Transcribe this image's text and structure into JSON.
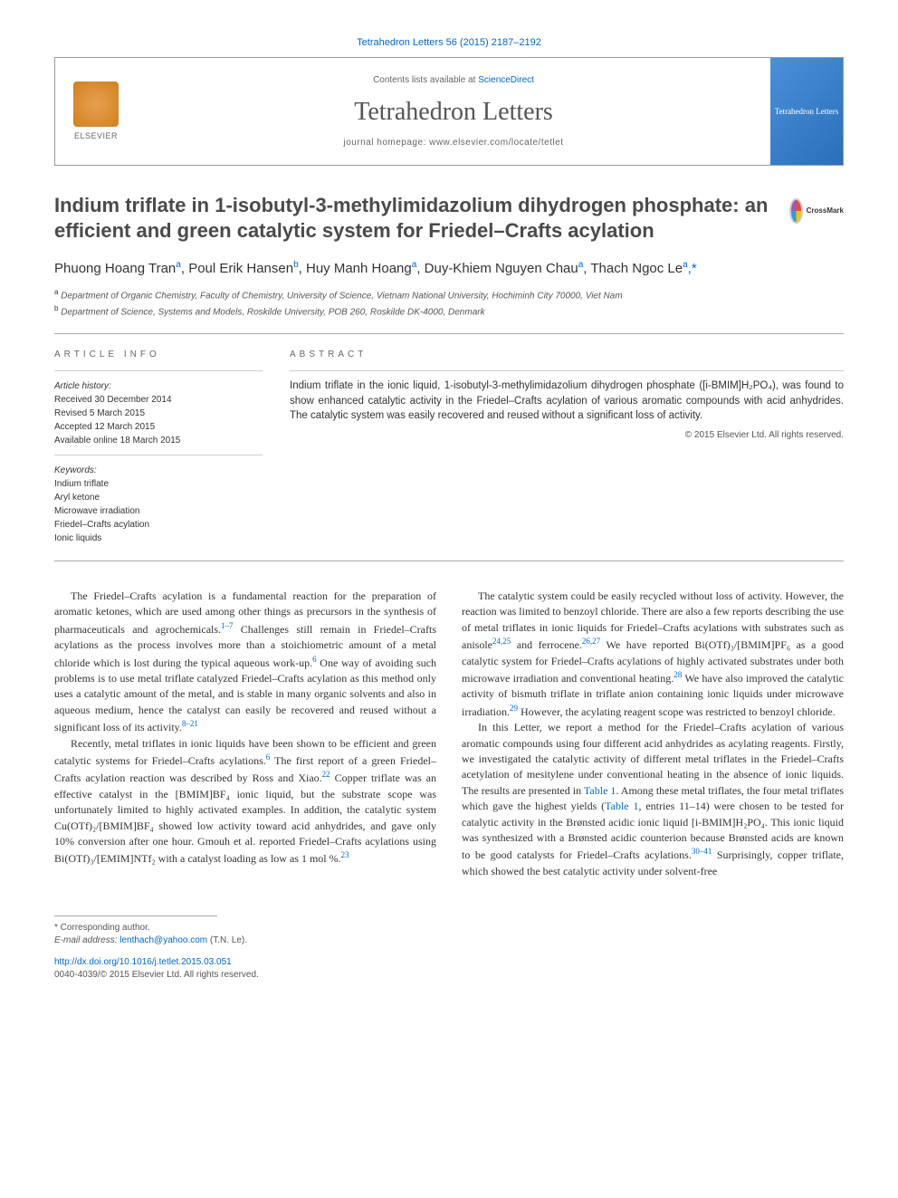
{
  "citation": "Tetrahedron Letters 56 (2015) 2187–2192",
  "masthead": {
    "publisher": "ELSEVIER",
    "contents_prefix": "Contents lists available at ",
    "contents_link": "ScienceDirect",
    "journal_name": "Tetrahedron Letters",
    "homepage_prefix": "journal homepage: ",
    "homepage_url": "www.elsevier.com/locate/tetlet",
    "cover_label": "Tetrahedron Letters"
  },
  "crossmark_label": "CrossMark",
  "title": "Indium triflate in 1-isobutyl-3-methylimidazolium dihydrogen phosphate: an efficient and green catalytic system for Friedel–Crafts acylation",
  "authors": [
    {
      "name": "Phuong Hoang Tran",
      "aff": "a"
    },
    {
      "name": "Poul Erik Hansen",
      "aff": "b"
    },
    {
      "name": "Huy Manh Hoang",
      "aff": "a"
    },
    {
      "name": "Duy-Khiem Nguyen Chau",
      "aff": "a"
    },
    {
      "name": "Thach Ngoc Le",
      "aff": "a",
      "corresponding": true
    }
  ],
  "affiliations": [
    {
      "key": "a",
      "text": "Department of Organic Chemistry, Faculty of Chemistry, University of Science, Vietnam National University, Hochiminh City 70000, Viet Nam"
    },
    {
      "key": "b",
      "text": "Department of Science, Systems and Models, Roskilde University, POB 260, Roskilde DK-4000, Denmark"
    }
  ],
  "info": {
    "label": "ARTICLE INFO",
    "history_title": "Article history:",
    "history": [
      "Received 30 December 2014",
      "Revised 5 March 2015",
      "Accepted 12 March 2015",
      "Available online 18 March 2015"
    ],
    "keywords_title": "Keywords:",
    "keywords": [
      "Indium triflate",
      "Aryl ketone",
      "Microwave irradiation",
      "Friedel–Crafts acylation",
      "Ionic liquids"
    ]
  },
  "abstract": {
    "label": "ABSTRACT",
    "text": "Indium triflate in the ionic liquid, 1-isobutyl-3-methylimidazolium dihydrogen phosphate ([i-BMIM]H₂PO₄), was found to show enhanced catalytic activity in the Friedel–Crafts acylation of various aromatic compounds with acid anhydrides. The catalytic system was easily recovered and reused without a significant loss of activity.",
    "copyright": "© 2015 Elsevier Ltd. All rights reserved."
  },
  "body": {
    "p1": "The Friedel–Crafts acylation is a fundamental reaction for the preparation of aromatic ketones, which are used among other things as precursors in the synthesis of pharmaceuticals and agrochemicals.",
    "p1_ref1": "1–7",
    "p1_cont": " Challenges still remain in Friedel–Crafts acylations as the process involves more than a stoichiometric amount of a metal chloride which is lost during the typical aqueous work-up.",
    "p1_ref2": "6",
    "p1_cont2": " One way of avoiding such problems is to use metal triflate catalyzed Friedel–Crafts acylation as this method only uses a catalytic amount of the metal, and is stable in many organic solvents and also in aqueous medium, hence the catalyst can easily be recovered and reused without a significant loss of its activity.",
    "p1_ref3": "8–21",
    "p2": "Recently, metal triflates in ionic liquids have been shown to be efficient and green catalytic systems for Friedel–Crafts acylations.",
    "p2_ref1": "6",
    "p2_cont": " The first report of a green Friedel–Crafts acylation reaction was described by Ross and Xiao.",
    "p2_ref2": "22",
    "p2_cont2": " Copper triflate was an effective catalyst in the [BMIM]BF₄ ionic liquid, but the substrate scope was unfortunately limited to highly activated examples. In addition, the catalytic system Cu(OTf)₂/[BMIM]BF₄ showed low activity toward acid anhydrides, and gave only 10% conversion after one hour. Gmouh et al. reported Friedel–Crafts acylations using Bi(OTf)₃/[EMIM]NTf₂ with a catalyst loading as low as 1 mol %.",
    "p2_ref3": "23",
    "p3": "The catalytic system could be easily recycled without loss of activity. However, the reaction was limited to benzoyl chloride. There are also a few reports describing the use of metal triflates in ionic liquids for Friedel–Crafts acylations with substrates such as anisole",
    "p3_ref1": "24,25",
    "p3_cont": " and ferrocene.",
    "p3_ref2": "26,27",
    "p3_cont2": " We have reported Bi(OTf)₃/[BMIM]PF₆ as a good catalytic system for Friedel–Crafts acylations of highly activated substrates under both microwave irradiation and conventional heating.",
    "p3_ref3": "28",
    "p3_cont3": " We have also improved the catalytic activity of bismuth triflate in triflate anion containing ionic liquids under microwave irradiation.",
    "p3_ref4": "29",
    "p3_cont4": " However, the acylating reagent scope was restricted to benzoyl chloride.",
    "p4": "In this Letter, we report a method for the Friedel–Crafts acylation of various aromatic compounds using four different acid anhydrides as acylating reagents. Firstly, we investigated the catalytic activity of different metal triflates in the Friedel–Crafts acetylation of mesitylene under conventional heating in the absence of ionic liquids. The results are presented in ",
    "p4_link1": "Table 1",
    "p4_cont": ". Among these metal triflates, the four metal triflates which gave the highest yields (",
    "p4_link2": "Table 1",
    "p4_cont2": ", entries 11–14) were chosen to be tested for catalytic activity in the Brønsted acidic ionic liquid [i-BMIM]H₂PO₄. This ionic liquid was synthesized with a Brønsted acidic counterion because Brønsted acids are known to be good catalysts for Friedel–Crafts acylations.",
    "p4_ref1": "30–41",
    "p4_cont3": " Surprisingly, copper triflate, which showed the best catalytic activity under solvent-free"
  },
  "footer": {
    "corr_label": "* Corresponding author.",
    "email_label": "E-mail address: ",
    "email": "lenthach@yahoo.com",
    "email_suffix": " (T.N. Le).",
    "doi": "http://dx.doi.org/10.1016/j.tetlet.2015.03.051",
    "issn_line": "0040-4039/© 2015 Elsevier Ltd. All rights reserved."
  },
  "colors": {
    "link": "#0066cc",
    "text": "#333333",
    "heading": "#4a4a4a",
    "border": "#999999"
  }
}
